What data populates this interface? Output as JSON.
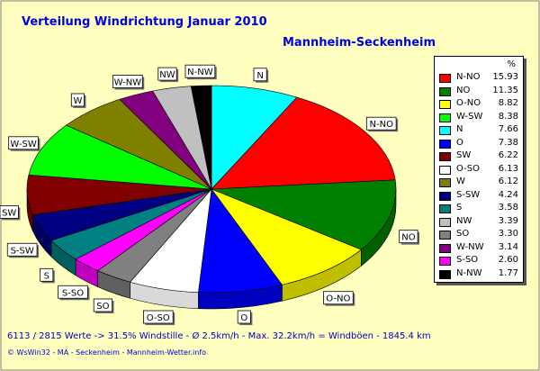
{
  "title": "Verteilung Windrichtung   Januar 2010",
  "subtitle": "Mannheim-Seckenheim",
  "legend_header": "%",
  "stats_line": "6113 / 2815 Werte  -> 31.5% Windstille   -   Ø 2.5km/h  -  Max. 32.2km/h = Windböen   -    1845.4 km",
  "footer_line": "© WsWin32  -  MA - Seckenheim  -  Mannheim-Wetter.info",
  "background": "#ffffc0",
  "chart_data": {
    "type": "pie",
    "title": "Verteilung Windrichtung   Januar 2010",
    "subtitle": "Mannheim-Seckenheim",
    "legend_placement": "right",
    "unit": "%",
    "slices": [
      {
        "label": "N-NO",
        "value": 15.93,
        "color": "#ff0000"
      },
      {
        "label": "NO",
        "value": 11.35,
        "color": "#008000"
      },
      {
        "label": "O-NO",
        "value": 8.82,
        "color": "#ffff00"
      },
      {
        "label": "W-SW",
        "value": 8.38,
        "color": "#00ff00"
      },
      {
        "label": "N",
        "value": 7.66,
        "color": "#00ffff"
      },
      {
        "label": "O",
        "value": 7.38,
        "color": "#0000ff"
      },
      {
        "label": "SW",
        "value": 6.22,
        "color": "#800000"
      },
      {
        "label": "O-SO",
        "value": 6.13,
        "color": "#ffffff"
      },
      {
        "label": "W",
        "value": 6.12,
        "color": "#808000"
      },
      {
        "label": "S-SW",
        "value": 4.24,
        "color": "#000080"
      },
      {
        "label": "S",
        "value": 3.58,
        "color": "#008080"
      },
      {
        "label": "NW",
        "value": 3.39,
        "color": "#c0c0c0"
      },
      {
        "label": "SO",
        "value": 3.3,
        "color": "#808080"
      },
      {
        "label": "W-NW",
        "value": 3.14,
        "color": "#800080"
      },
      {
        "label": "S-SO",
        "value": 2.6,
        "color": "#ff00ff"
      },
      {
        "label": "N-NW",
        "value": 1.77,
        "color": "#000000"
      }
    ],
    "pie_order": [
      "N",
      "N-NO",
      "NO",
      "O-NO",
      "O",
      "O-SO",
      "SO",
      "S-SO",
      "S",
      "S-SW",
      "SW",
      "W-SW",
      "W",
      "W-NW",
      "NW",
      "N-NW"
    ]
  }
}
